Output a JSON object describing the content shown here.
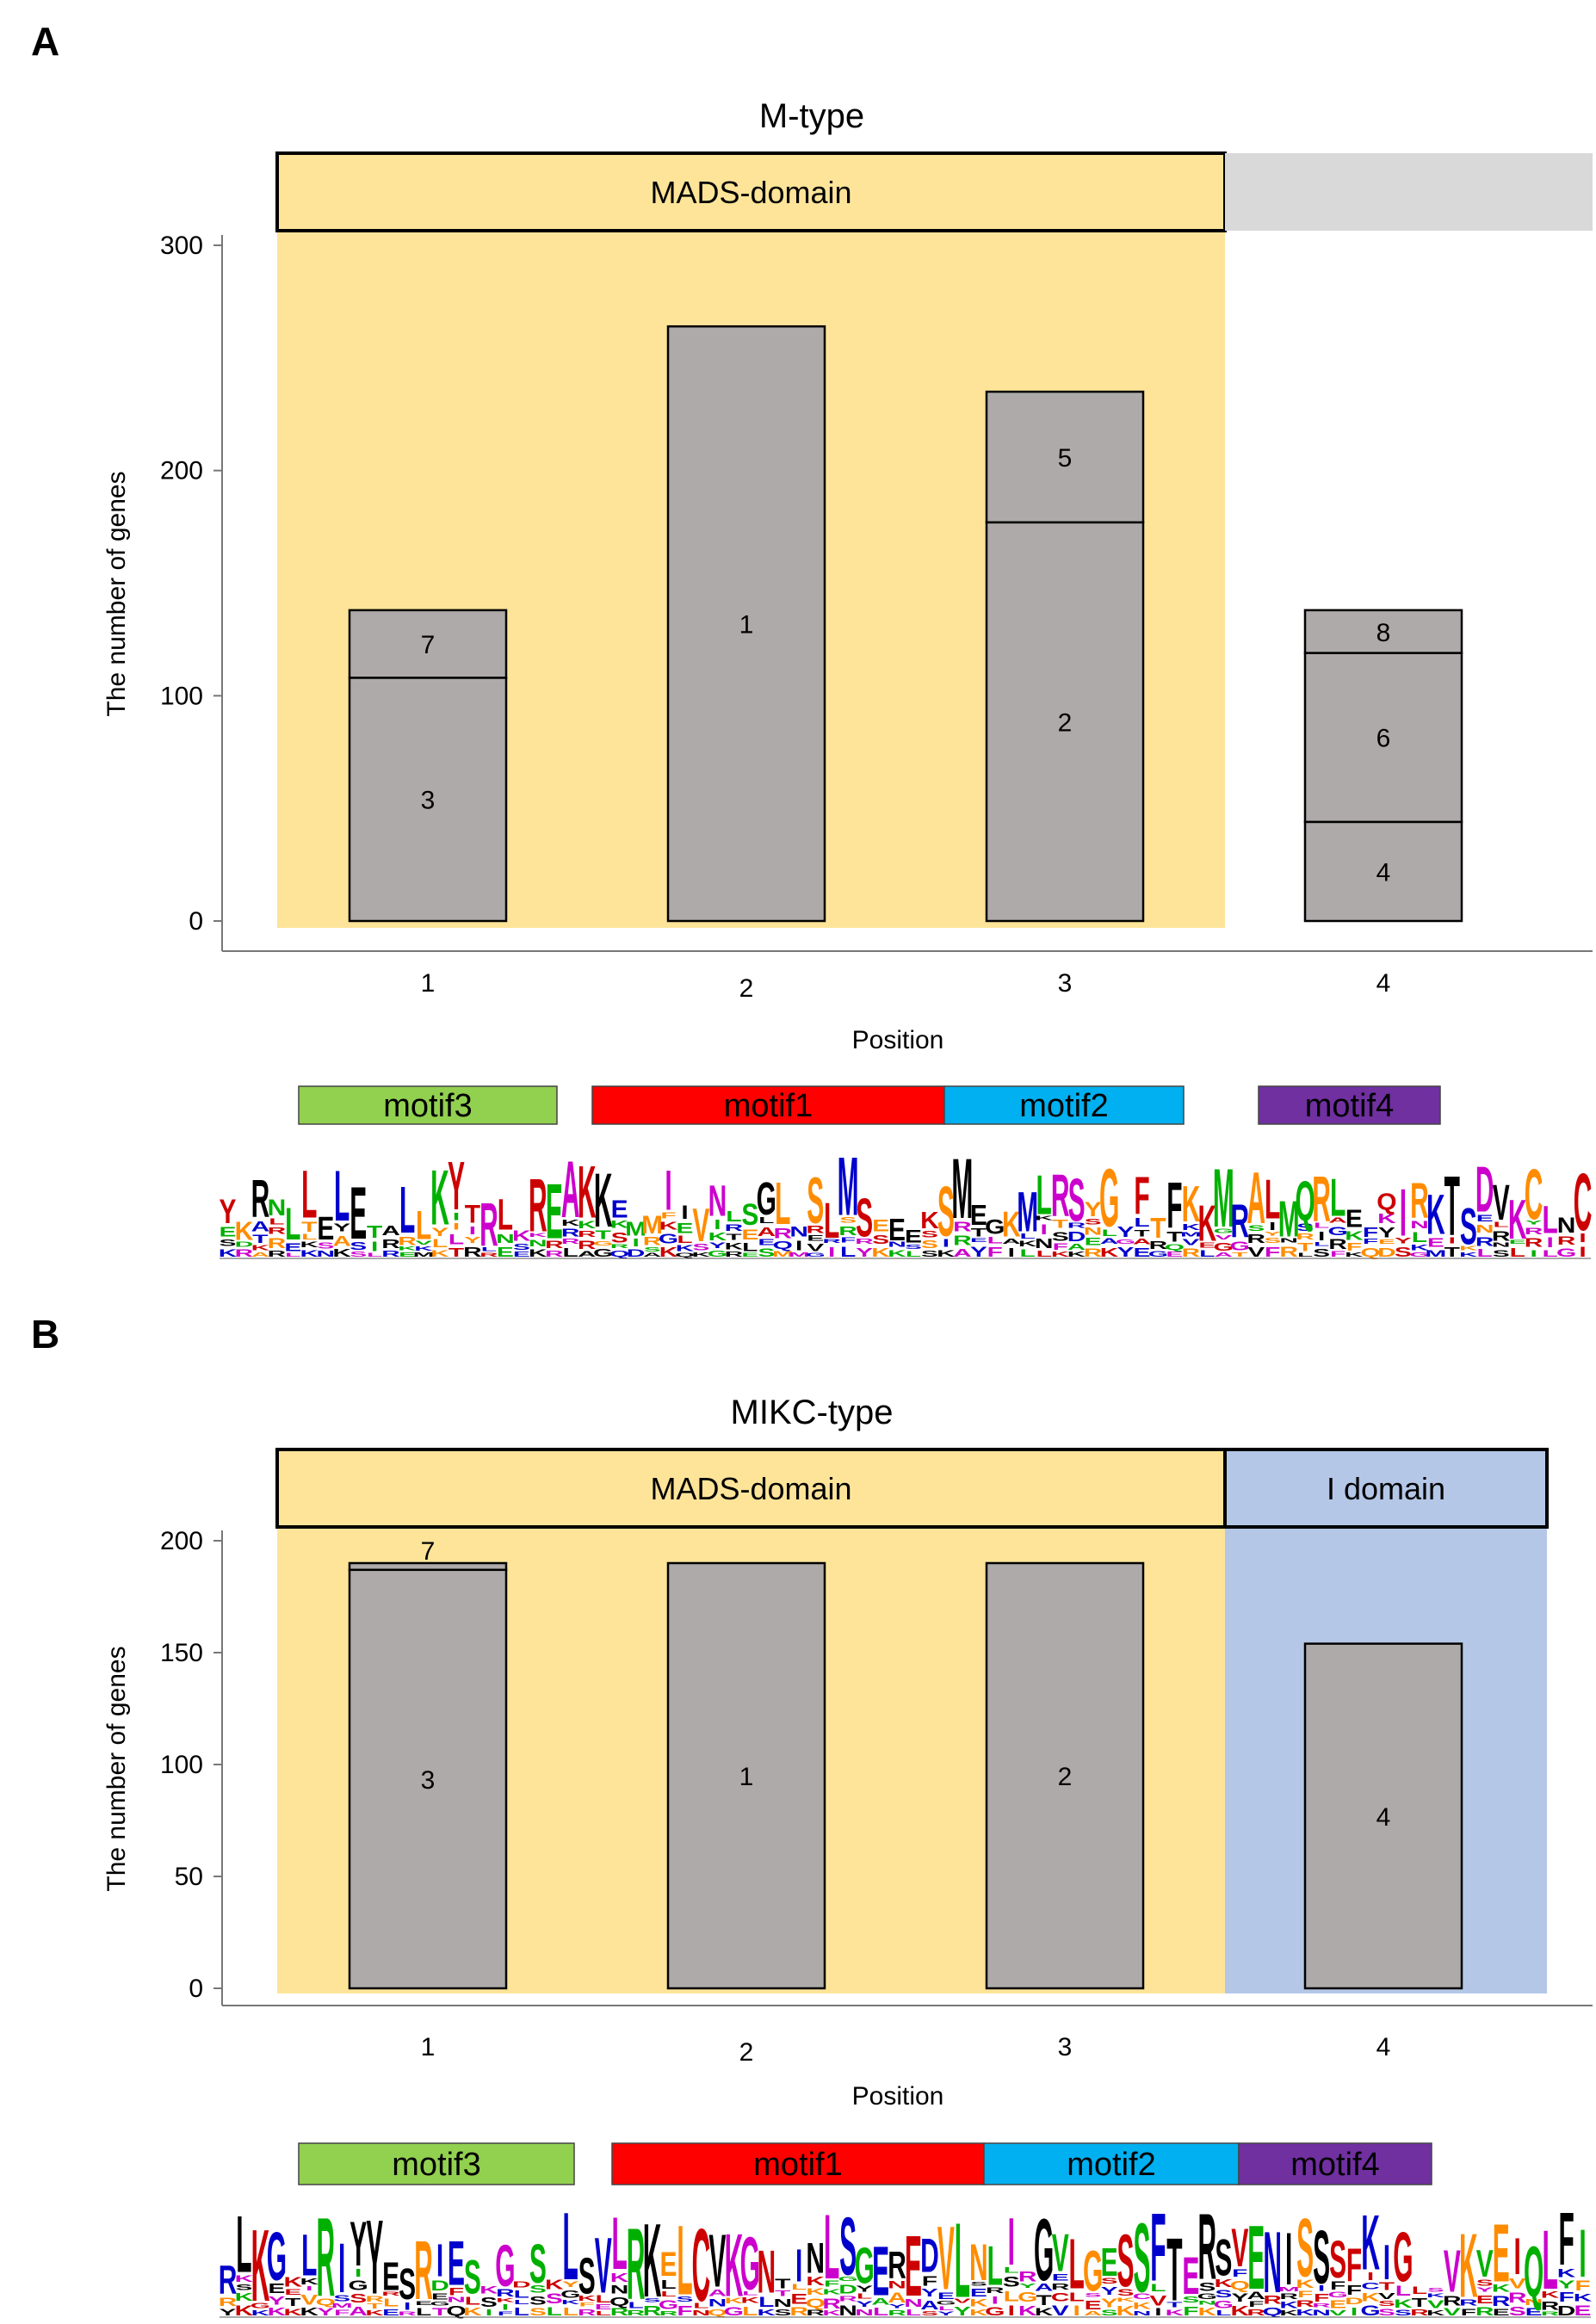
{
  "colors": {
    "mads_band": "#fde499",
    "c_band": "#d9d9d9",
    "i_band": "#b4c7e7",
    "bar": "#aeaaaa",
    "motif1": "#ff0000",
    "motif2": "#00b0f0",
    "motif3": "#92d050",
    "motif4": "#7030a0"
  },
  "chart_data": [
    {
      "panel": "A",
      "type": "bar",
      "stacked": true,
      "title": "M-type",
      "xlabel": "Position",
      "ylabel": "The number of genes",
      "ylim": [
        0,
        300
      ],
      "yticks": [
        "0",
        "100",
        "200",
        "300"
      ],
      "categories": [
        "1",
        "2",
        "3",
        "4"
      ],
      "domains": [
        {
          "label": "MADS-domain",
          "positions": [
            1,
            3
          ]
        },
        {
          "label": "",
          "positions": [
            4,
            4
          ]
        }
      ],
      "bars": [
        {
          "x": "1",
          "segments": [
            {
              "motif": "3",
              "value": 108
            },
            {
              "motif": "7",
              "value": 30
            }
          ]
        },
        {
          "x": "2",
          "segments": [
            {
              "motif": "1",
              "value": 264
            }
          ]
        },
        {
          "x": "3",
          "segments": [
            {
              "motif": "2",
              "value": 177
            },
            {
              "motif": "5",
              "value": 58
            }
          ]
        },
        {
          "x": "4",
          "segments": [
            {
              "motif": "4",
              "value": 44
            },
            {
              "motif": "6",
              "value": 75
            },
            {
              "motif": "8",
              "value": 19
            }
          ]
        }
      ],
      "motif_legend": [
        "motif3",
        "motif1",
        "motif2",
        "motif4"
      ]
    },
    {
      "panel": "B",
      "type": "bar",
      "stacked": true,
      "title": "MIKC-type",
      "xlabel": "Position",
      "ylabel": "The number of genes",
      "ylim": [
        0,
        200
      ],
      "yticks": [
        "0",
        "50",
        "100",
        "150",
        "200"
      ],
      "categories": [
        "1",
        "2",
        "3",
        "4"
      ],
      "domains": [
        {
          "label": "MADS-domain",
          "positions": [
            1,
            3
          ]
        },
        {
          "label": "I domain",
          "positions": [
            4,
            4
          ]
        }
      ],
      "bars": [
        {
          "x": "1",
          "segments": [
            {
              "motif": "3",
              "value": 187
            },
            {
              "motif": "7",
              "value": 3
            }
          ]
        },
        {
          "x": "2",
          "segments": [
            {
              "motif": "1",
              "value": 190
            }
          ]
        },
        {
          "x": "3",
          "segments": [
            {
              "motif": "2",
              "value": 190
            }
          ]
        },
        {
          "x": "4",
          "segments": [
            {
              "motif": "4",
              "value": 154
            }
          ]
        }
      ],
      "motif_legend": [
        "motif3",
        "motif1",
        "motif2",
        "motif4"
      ]
    }
  ]
}
